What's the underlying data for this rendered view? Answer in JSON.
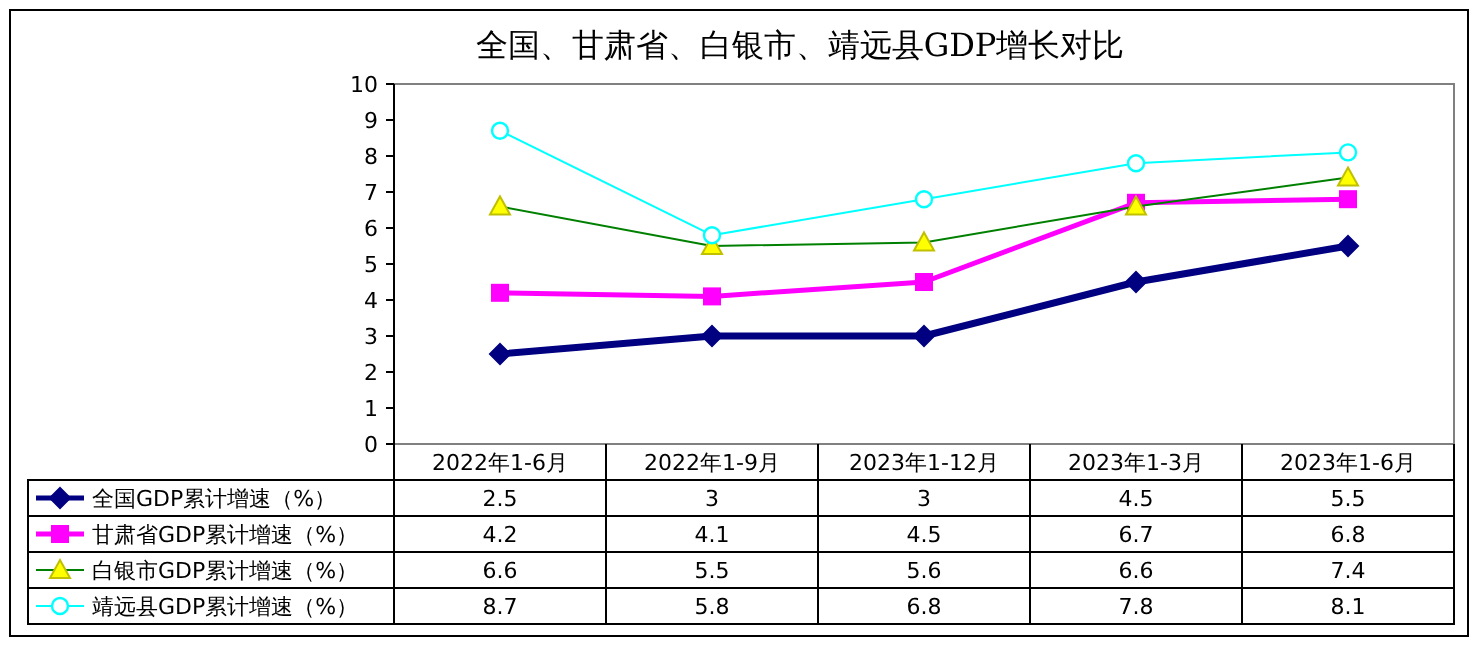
{
  "chart_data": {
    "type": "line",
    "title": "全国、甘肃省、白银市、靖远县GDP增长对比",
    "categories": [
      "2022年1-6月",
      "2022年1-9月",
      "2023年1-12月",
      "2023年1-3月",
      "2023年1-6月"
    ],
    "series": [
      {
        "name": "全国GDP累计增速（%）",
        "color": "#000080",
        "marker": "diamond",
        "values": [
          2.5,
          3,
          3,
          4.5,
          5.5
        ]
      },
      {
        "name": "甘肃省GDP累计增速（%）",
        "color": "#ff00ff",
        "marker": "square",
        "values": [
          4.2,
          4.1,
          4.5,
          6.7,
          6.8
        ]
      },
      {
        "name": "白银市GDP累计增速（%）",
        "color": "#008000",
        "marker": "triangle",
        "values": [
          6.6,
          5.5,
          5.6,
          6.6,
          7.4
        ]
      },
      {
        "name": "靖远县GDP累计增速（%）",
        "color": "#00ffff",
        "marker": "circle",
        "values": [
          8.7,
          5.8,
          6.8,
          7.8,
          8.1
        ]
      }
    ],
    "ylim": [
      0,
      10
    ],
    "yticks": [
      0,
      1,
      2,
      3,
      4,
      5,
      6,
      7,
      8,
      9,
      10
    ],
    "data_labels": true,
    "legend": "bottom",
    "grid": false
  }
}
